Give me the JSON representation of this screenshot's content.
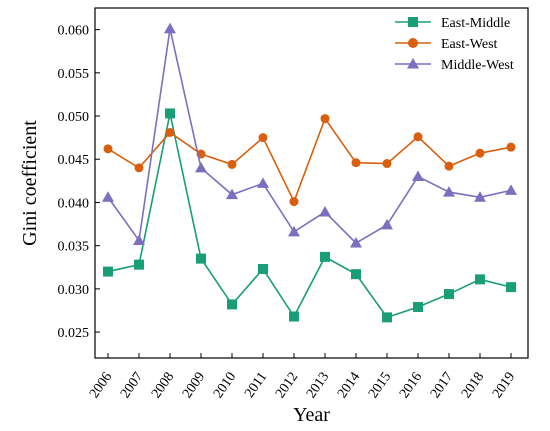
{
  "chart_data": {
    "type": "line",
    "xlabel": "Year",
    "ylabel": "Gini coefficient",
    "x": [
      "2006",
      "2007",
      "2008",
      "2009",
      "2010",
      "2011",
      "2012",
      "2013",
      "2014",
      "2015",
      "2016",
      "2017",
      "2018",
      "2019"
    ],
    "ylim": [
      0.022,
      0.0625
    ],
    "yticks": [
      0.025,
      0.03,
      0.035,
      0.04,
      0.045,
      0.05,
      0.055,
      0.06
    ],
    "ytick_labels": [
      "0.025",
      "0.030",
      "0.035",
      "0.040",
      "0.045",
      "0.050",
      "0.055",
      "0.060"
    ],
    "grid": false,
    "legend_position": "top-right",
    "series": [
      {
        "name": "East-Middle",
        "color": "#1a9e77",
        "marker": "square",
        "values": [
          0.032,
          0.0328,
          0.0503,
          0.0335,
          0.0282,
          0.0323,
          0.0268,
          0.0337,
          0.0317,
          0.0267,
          0.0279,
          0.0294,
          0.0311,
          0.0302
        ]
      },
      {
        "name": "East-West",
        "color": "#d95f0e",
        "marker": "circle",
        "values": [
          0.0462,
          0.044,
          0.0481,
          0.0456,
          0.0444,
          0.0475,
          0.0401,
          0.0497,
          0.0446,
          0.0445,
          0.0476,
          0.0442,
          0.0457,
          0.0464
        ]
      },
      {
        "name": "Middle-West",
        "color": "#7b6fbf",
        "marker": "triangle",
        "values": [
          0.0406,
          0.0356,
          0.0601,
          0.044,
          0.0409,
          0.0422,
          0.0366,
          0.0389,
          0.0353,
          0.0374,
          0.043,
          0.0412,
          0.0406,
          0.0414
        ]
      }
    ]
  }
}
